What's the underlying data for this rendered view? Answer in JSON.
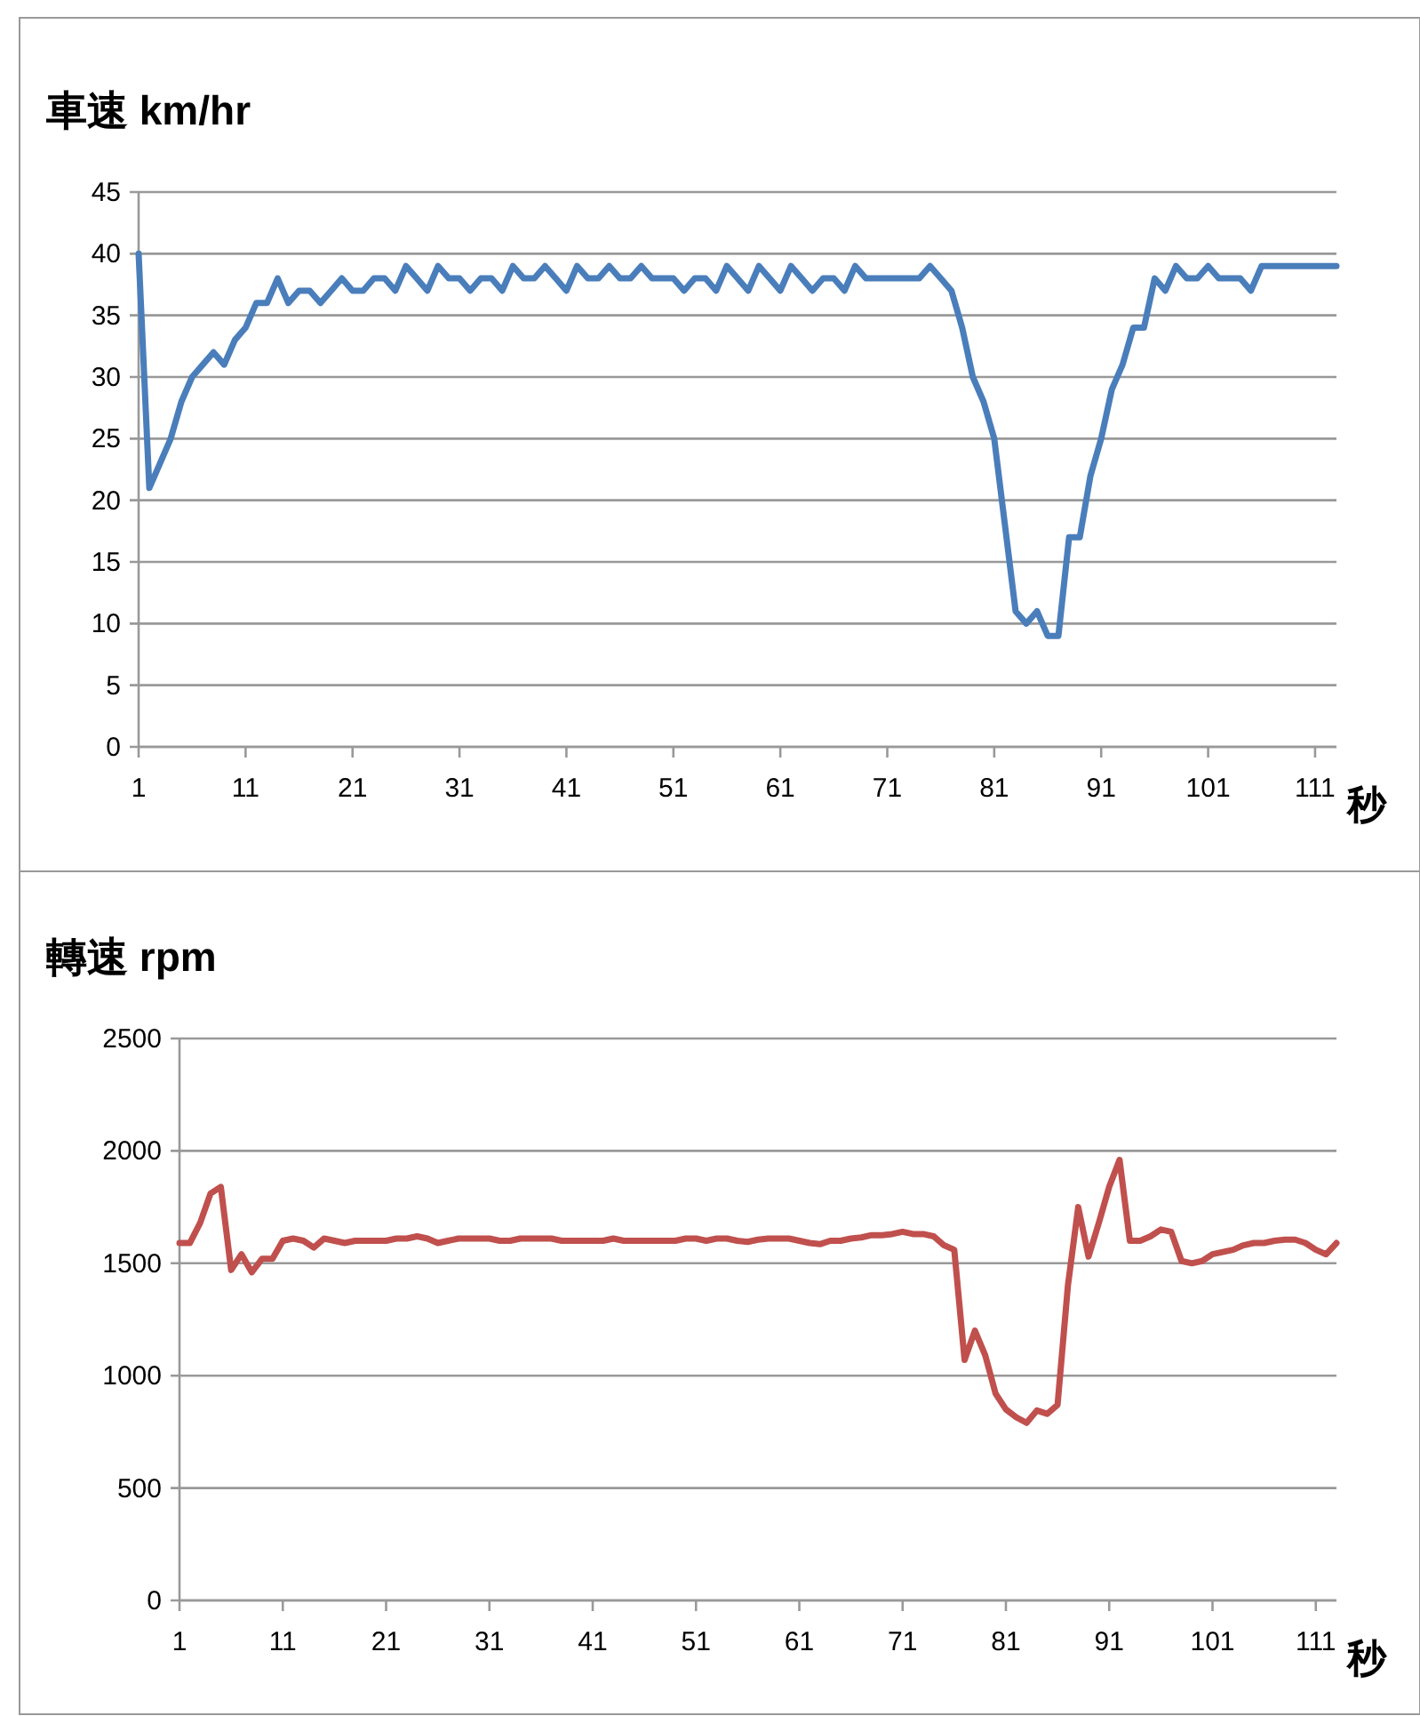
{
  "chart_data": [
    {
      "type": "line",
      "title": "車速 km/hr",
      "xlabel": "秒",
      "x": [
        1,
        2,
        3,
        4,
        5,
        6,
        7,
        8,
        9,
        10,
        11,
        12,
        13,
        14,
        15,
        16,
        17,
        18,
        19,
        20,
        21,
        22,
        23,
        24,
        25,
        26,
        27,
        28,
        29,
        30,
        31,
        32,
        33,
        34,
        35,
        36,
        37,
        38,
        39,
        40,
        41,
        42,
        43,
        44,
        45,
        46,
        47,
        48,
        49,
        50,
        51,
        52,
        53,
        54,
        55,
        56,
        57,
        58,
        59,
        60,
        61,
        62,
        63,
        64,
        65,
        66,
        67,
        68,
        69,
        70,
        71,
        72,
        73,
        74,
        75,
        76,
        77,
        78,
        79,
        80,
        81,
        82,
        83,
        84,
        85,
        86,
        87,
        88,
        89,
        90,
        91,
        92,
        93,
        94,
        95,
        96,
        97,
        98,
        99,
        100,
        101,
        102,
        103,
        104,
        105,
        106,
        107,
        108,
        109,
        110,
        111,
        112,
        113
      ],
      "xlim": [
        1,
        113
      ],
      "xticks": [
        1,
        11,
        21,
        31,
        41,
        51,
        61,
        71,
        81,
        91,
        101,
        111
      ],
      "ylim": [
        0,
        45
      ],
      "yticks": [
        0,
        5,
        10,
        15,
        20,
        25,
        30,
        35,
        40,
        45
      ],
      "grid": "y",
      "series": [
        {
          "color": "#4a7ebb",
          "values": [
            40,
            21,
            23,
            25,
            28,
            30,
            31,
            32,
            31,
            33,
            34,
            36,
            36,
            38,
            36,
            37,
            37,
            36,
            37,
            38,
            37,
            37,
            38,
            38,
            37,
            39,
            38,
            37,
            39,
            38,
            38,
            37,
            38,
            38,
            37,
            39,
            38,
            38,
            39,
            38,
            37,
            39,
            38,
            38,
            39,
            38,
            38,
            39,
            38,
            38,
            38,
            37,
            38,
            38,
            37,
            39,
            38,
            37,
            39,
            38,
            37,
            39,
            38,
            37,
            38,
            38,
            37,
            39,
            38,
            38,
            38,
            38,
            38,
            38,
            39,
            38,
            37,
            34,
            30,
            28,
            25,
            18,
            11,
            10,
            11,
            9,
            9,
            17,
            17,
            22,
            25,
            29,
            31,
            34,
            34,
            38,
            37,
            39,
            38,
            38,
            39,
            38,
            38,
            38,
            37,
            39,
            39,
            39,
            39,
            39,
            39,
            39,
            39
          ]
        }
      ]
    },
    {
      "type": "line",
      "title": "轉速 rpm",
      "xlabel": "秒",
      "x": [
        1,
        2,
        3,
        4,
        5,
        6,
        7,
        8,
        9,
        10,
        11,
        12,
        13,
        14,
        15,
        16,
        17,
        18,
        19,
        20,
        21,
        22,
        23,
        24,
        25,
        26,
        27,
        28,
        29,
        30,
        31,
        32,
        33,
        34,
        35,
        36,
        37,
        38,
        39,
        40,
        41,
        42,
        43,
        44,
        45,
        46,
        47,
        48,
        49,
        50,
        51,
        52,
        53,
        54,
        55,
        56,
        57,
        58,
        59,
        60,
        61,
        62,
        63,
        64,
        65,
        66,
        67,
        68,
        69,
        70,
        71,
        72,
        73,
        74,
        75,
        76,
        77,
        78,
        79,
        80,
        81,
        82,
        83,
        84,
        85,
        86,
        87,
        88,
        89,
        90,
        91,
        92,
        93,
        94,
        95,
        96,
        97,
        98,
        99,
        100,
        101,
        102,
        103,
        104,
        105,
        106,
        107,
        108,
        109,
        110,
        111,
        112,
        113
      ],
      "xlim": [
        1,
        113
      ],
      "xticks": [
        1,
        11,
        21,
        31,
        41,
        51,
        61,
        71,
        81,
        91,
        101,
        111
      ],
      "ylim": [
        0,
        2500
      ],
      "yticks": [
        0,
        500,
        1000,
        1500,
        2000,
        2500
      ],
      "grid": "y",
      "series": [
        {
          "color": "#c0504d",
          "values": [
            1590,
            1590,
            1680,
            1810,
            1840,
            1470,
            1540,
            1460,
            1520,
            1520,
            1600,
            1610,
            1600,
            1570,
            1610,
            1600,
            1590,
            1600,
            1600,
            1600,
            1600,
            1610,
            1610,
            1620,
            1610,
            1590,
            1600,
            1610,
            1610,
            1610,
            1610,
            1600,
            1600,
            1610,
            1610,
            1610,
            1610,
            1600,
            1600,
            1600,
            1600,
            1600,
            1610,
            1600,
            1600,
            1600,
            1600,
            1600,
            1600,
            1610,
            1610,
            1600,
            1610,
            1610,
            1600,
            1595,
            1605,
            1610,
            1610,
            1610,
            1600,
            1590,
            1585,
            1600,
            1600,
            1610,
            1615,
            1625,
            1625,
            1630,
            1640,
            1630,
            1630,
            1620,
            1580,
            1560,
            1070,
            1200,
            1090,
            920,
            850,
            815,
            790,
            845,
            830,
            870,
            1400,
            1750,
            1530,
            1680,
            1840,
            1960,
            1600,
            1600,
            1620,
            1650,
            1640,
            1510,
            1500,
            1510,
            1540,
            1550,
            1560,
            1580,
            1590,
            1590,
            1600,
            1605,
            1605,
            1590,
            1560,
            1540,
            1590
          ]
        }
      ]
    }
  ]
}
